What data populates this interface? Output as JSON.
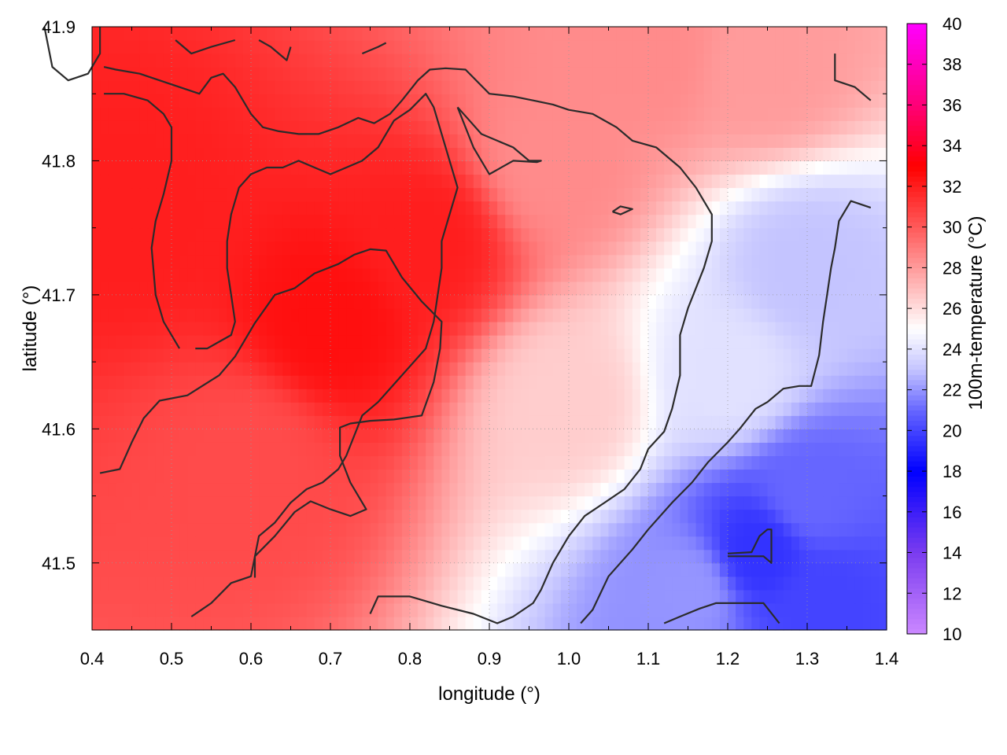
{
  "chart_data": {
    "type": "heatmap",
    "title": "",
    "xlabel": "longitude (°)",
    "ylabel": "latitude (°)",
    "colorbar_label": "100m-temperature (°C)",
    "xlim": [
      0.4,
      1.4
    ],
    "ylim": [
      41.45,
      41.9
    ],
    "x_ticks": [
      "0.4",
      "0.5",
      "0.6",
      "0.7",
      "0.8",
      "0.9",
      "1.0",
      "1.1",
      "1.2",
      "1.3",
      "1.4"
    ],
    "y_ticks": [
      "41.5",
      "41.6",
      "41.7",
      "41.8",
      "41.9"
    ],
    "colorbar_range": [
      10,
      40
    ],
    "colorbar_ticks": [
      "10",
      "12",
      "14",
      "16",
      "18",
      "20",
      "22",
      "24",
      "26",
      "28",
      "30",
      "32",
      "34",
      "36",
      "38",
      "40"
    ],
    "colormap": [
      {
        "value": 10,
        "color": "#cc88ff"
      },
      {
        "value": 14,
        "color": "#7a3cf0"
      },
      {
        "value": 18,
        "color": "#0000ff"
      },
      {
        "value": 21,
        "color": "#6666ff"
      },
      {
        "value": 23,
        "color": "#c4c4ff"
      },
      {
        "value": 25,
        "color": "#ffffff"
      },
      {
        "value": 27,
        "color": "#ffbcbc"
      },
      {
        "value": 30,
        "color": "#ff5a5a"
      },
      {
        "value": 33,
        "color": "#ff0000"
      },
      {
        "value": 36,
        "color": "#ff0077"
      },
      {
        "value": 40,
        "color": "#ff00ff"
      }
    ],
    "temperature_centers": [
      {
        "lon": 0.7,
        "lat": 41.68,
        "temp": 32.5
      },
      {
        "lon": 0.82,
        "lat": 41.74,
        "temp": 32.0
      },
      {
        "lon": 0.45,
        "lat": 41.76,
        "temp": 32.0
      },
      {
        "lon": 0.6,
        "lat": 41.58,
        "temp": 30.5
      },
      {
        "lon": 0.98,
        "lat": 41.8,
        "temp": 28.5
      },
      {
        "lon": 1.1,
        "lat": 41.88,
        "temp": 28.5
      },
      {
        "lon": 1.25,
        "lat": 41.87,
        "temp": 28.0
      },
      {
        "lon": 1.0,
        "lat": 41.62,
        "temp": 26.5
      },
      {
        "lon": 1.2,
        "lat": 41.64,
        "temp": 24.0
      },
      {
        "lon": 1.3,
        "lat": 41.72,
        "temp": 23.0
      },
      {
        "lon": 1.3,
        "lat": 41.55,
        "temp": 21.0
      },
      {
        "lon": 1.15,
        "lat": 41.48,
        "temp": 22.0
      },
      {
        "lon": 1.24,
        "lat": 41.51,
        "temp": 19.5
      },
      {
        "lon": 1.32,
        "lat": 41.47,
        "temp": 20.0
      }
    ],
    "contours": [
      [
        [
          0.41,
          41.567
        ],
        [
          0.435,
          41.57
        ],
        [
          0.45,
          41.59
        ],
        [
          0.465,
          41.608
        ],
        [
          0.485,
          41.621
        ],
        [
          0.52,
          41.625
        ],
        [
          0.56,
          41.64
        ],
        [
          0.58,
          41.654
        ],
        [
          0.605,
          41.679
        ],
        [
          0.63,
          41.7
        ],
        [
          0.655,
          41.705
        ],
        [
          0.68,
          41.716
        ],
        [
          0.71,
          41.723
        ],
        [
          0.73,
          41.73
        ],
        [
          0.75,
          41.734
        ],
        [
          0.77,
          41.733
        ],
        [
          0.79,
          41.713
        ],
        [
          0.815,
          41.695
        ],
        [
          0.84,
          41.68
        ],
        [
          0.838,
          41.66
        ],
        [
          0.83,
          41.635
        ],
        [
          0.815,
          41.61
        ],
        [
          0.78,
          41.607
        ],
        [
          0.75,
          41.606
        ],
        [
          0.725,
          41.604
        ],
        [
          0.712,
          41.601
        ],
        [
          0.712,
          41.58
        ],
        [
          0.725,
          41.56
        ],
        [
          0.745,
          41.54
        ],
        [
          0.725,
          41.535
        ],
        [
          0.7,
          41.54
        ],
        [
          0.675,
          41.546
        ],
        [
          0.655,
          41.538
        ],
        [
          0.63,
          41.52
        ],
        [
          0.605,
          41.505
        ],
        [
          0.605,
          41.489
        ]
      ],
      [
        [
          0.51,
          41.66
        ],
        [
          0.49,
          41.68
        ],
        [
          0.48,
          41.7
        ],
        [
          0.475,
          41.735
        ],
        [
          0.48,
          41.755
        ],
        [
          0.49,
          41.775
        ],
        [
          0.5,
          41.8
        ],
        [
          0.5,
          41.825
        ],
        [
          0.49,
          41.835
        ],
        [
          0.47,
          41.845
        ],
        [
          0.44,
          41.85
        ],
        [
          0.415,
          41.85
        ]
      ],
      [
        [
          0.415,
          41.87
        ],
        [
          0.43,
          41.868
        ],
        [
          0.46,
          41.865
        ],
        [
          0.485,
          41.86
        ],
        [
          0.51,
          41.855
        ],
        [
          0.535,
          41.85
        ],
        [
          0.55,
          41.862
        ],
        [
          0.565,
          41.865
        ],
        [
          0.58,
          41.855
        ],
        [
          0.6,
          41.835
        ],
        [
          0.615,
          41.825
        ],
        [
          0.635,
          41.822
        ],
        [
          0.66,
          41.82
        ],
        [
          0.685,
          41.82
        ],
        [
          0.71,
          41.825
        ],
        [
          0.735,
          41.832
        ],
        [
          0.755,
          41.828
        ],
        [
          0.775,
          41.835
        ],
        [
          0.79,
          41.845
        ],
        [
          0.81,
          41.86
        ],
        [
          0.825,
          41.868
        ],
        [
          0.845,
          41.869
        ],
        [
          0.87,
          41.868
        ],
        [
          0.9,
          41.85
        ],
        [
          0.93,
          41.848
        ],
        [
          0.955,
          41.845
        ],
        [
          0.98,
          41.842
        ],
        [
          1.0,
          41.838
        ],
        [
          1.03,
          41.835
        ],
        [
          1.06,
          41.825
        ],
        [
          1.08,
          41.815
        ],
        [
          1.11,
          41.81
        ],
        [
          1.14,
          41.795
        ],
        [
          1.16,
          41.78
        ],
        [
          1.18,
          41.76
        ],
        [
          1.18,
          41.74
        ],
        [
          1.17,
          41.72
        ],
        [
          1.16,
          41.705
        ],
        [
          1.15,
          41.69
        ],
        [
          1.14,
          41.67
        ],
        [
          1.14,
          41.64
        ],
        [
          1.13,
          41.615
        ],
        [
          1.12,
          41.598
        ],
        [
          1.1,
          41.585
        ],
        [
          1.09,
          41.57
        ],
        [
          1.07,
          41.555
        ],
        [
          1.045,
          41.545
        ],
        [
          1.02,
          41.535
        ],
        [
          1.0,
          41.52
        ],
        [
          0.98,
          41.5
        ],
        [
          0.965,
          41.48
        ],
        [
          0.955,
          41.47
        ],
        [
          0.93,
          41.46
        ],
        [
          0.91,
          41.455
        ],
        [
          0.88,
          41.462
        ],
        [
          0.84,
          41.468
        ],
        [
          0.8,
          41.475
        ],
        [
          0.76,
          41.475
        ],
        [
          0.75,
          41.462
        ]
      ],
      [
        [
          0.525,
          41.46
        ],
        [
          0.55,
          41.47
        ],
        [
          0.575,
          41.485
        ],
        [
          0.6,
          41.49
        ],
        [
          0.61,
          41.52
        ],
        [
          0.63,
          41.53
        ],
        [
          0.65,
          41.545
        ],
        [
          0.67,
          41.555
        ],
        [
          0.69,
          41.56
        ],
        [
          0.71,
          41.57
        ],
        [
          0.72,
          41.58
        ],
        [
          0.73,
          41.595
        ],
        [
          0.74,
          41.61
        ],
        [
          0.76,
          41.62
        ],
        [
          0.79,
          41.64
        ],
        [
          0.82,
          41.66
        ],
        [
          0.83,
          41.68
        ],
        [
          0.835,
          41.7
        ],
        [
          0.84,
          41.72
        ],
        [
          0.84,
          41.74
        ],
        [
          0.85,
          41.76
        ],
        [
          0.86,
          41.78
        ],
        [
          0.85,
          41.8
        ],
        [
          0.84,
          41.82
        ],
        [
          0.83,
          41.84
        ],
        [
          0.82,
          41.85
        ],
        [
          0.8,
          41.838
        ],
        [
          0.78,
          41.83
        ],
        [
          0.76,
          41.81
        ],
        [
          0.74,
          41.8
        ],
        [
          0.72,
          41.795
        ],
        [
          0.7,
          41.79
        ],
        [
          0.68,
          41.795
        ],
        [
          0.66,
          41.8
        ],
        [
          0.64,
          41.795
        ],
        [
          0.62,
          41.795
        ],
        [
          0.6,
          41.79
        ],
        [
          0.585,
          41.78
        ],
        [
          0.575,
          41.76
        ],
        [
          0.57,
          41.74
        ],
        [
          0.57,
          41.72
        ],
        [
          0.575,
          41.7
        ],
        [
          0.58,
          41.68
        ],
        [
          0.575,
          41.67
        ],
        [
          0.56,
          41.665
        ],
        [
          0.545,
          41.66
        ],
        [
          0.53,
          41.66
        ]
      ],
      [
        [
          0.86,
          41.84
        ],
        [
          0.88,
          41.81
        ],
        [
          0.9,
          41.79
        ],
        [
          0.93,
          41.8
        ],
        [
          0.96,
          41.799
        ],
        [
          0.965,
          41.8
        ],
        [
          0.95,
          41.8
        ],
        [
          0.93,
          41.81
        ],
        [
          0.91,
          41.815
        ],
        [
          0.89,
          41.82
        ],
        [
          0.875,
          41.83
        ],
        [
          0.86,
          41.84
        ]
      ],
      [
        [
          1.055,
          41.762
        ],
        [
          1.065,
          41.766
        ],
        [
          1.08,
          41.764
        ],
        [
          1.065,
          41.76
        ],
        [
          1.055,
          41.762
        ]
      ],
      [
        [
          0.34,
          41.9
        ],
        [
          0.35,
          41.87
        ],
        [
          0.37,
          41.86
        ],
        [
          0.395,
          41.865
        ],
        [
          0.41,
          41.88
        ],
        [
          0.41,
          41.9
        ]
      ],
      [
        [
          0.505,
          41.89
        ],
        [
          0.525,
          41.88
        ],
        [
          0.55,
          41.885
        ],
        [
          0.58,
          41.89
        ]
      ],
      [
        [
          0.61,
          41.89
        ],
        [
          0.625,
          41.885
        ],
        [
          0.645,
          41.875
        ],
        [
          0.65,
          41.885
        ]
      ],
      [
        [
          0.74,
          41.88
        ],
        [
          0.76,
          41.885
        ],
        [
          0.77,
          41.888
        ]
      ],
      [
        [
          1.335,
          41.88
        ],
        [
          1.335,
          41.86
        ],
        [
          1.36,
          41.855
        ],
        [
          1.38,
          41.845
        ]
      ],
      [
        [
          1.015,
          41.455
        ],
        [
          1.03,
          41.465
        ],
        [
          1.05,
          41.49
        ],
        [
          1.08,
          41.51
        ],
        [
          1.1,
          41.525
        ],
        [
          1.13,
          41.545
        ],
        [
          1.155,
          41.56
        ],
        [
          1.175,
          41.575
        ],
        [
          1.2,
          41.59
        ],
        [
          1.215,
          41.6
        ],
        [
          1.235,
          41.615
        ],
        [
          1.25,
          41.62
        ],
        [
          1.27,
          41.63
        ],
        [
          1.29,
          41.632
        ],
        [
          1.305,
          41.632
        ],
        [
          1.315,
          41.655
        ],
        [
          1.32,
          41.68
        ],
        [
          1.325,
          41.7
        ],
        [
          1.33,
          41.72
        ],
        [
          1.335,
          41.735
        ],
        [
          1.34,
          41.755
        ],
        [
          1.355,
          41.77
        ],
        [
          1.38,
          41.765
        ]
      ],
      [
        [
          1.12,
          41.455
        ],
        [
          1.14,
          41.46
        ],
        [
          1.165,
          41.466
        ],
        [
          1.185,
          41.47
        ],
        [
          1.22,
          41.47
        ],
        [
          1.245,
          41.47
        ],
        [
          1.265,
          41.455
        ]
      ],
      [
        [
          1.2,
          41.505
        ],
        [
          1.225,
          41.505
        ],
        [
          1.245,
          41.505
        ],
        [
          1.255,
          41.5
        ],
        [
          1.255,
          41.52
        ],
        [
          1.255,
          41.525
        ],
        [
          1.25,
          41.525
        ],
        [
          1.24,
          41.52
        ],
        [
          1.23,
          41.508
        ],
        [
          1.2,
          41.507
        ]
      ]
    ]
  }
}
